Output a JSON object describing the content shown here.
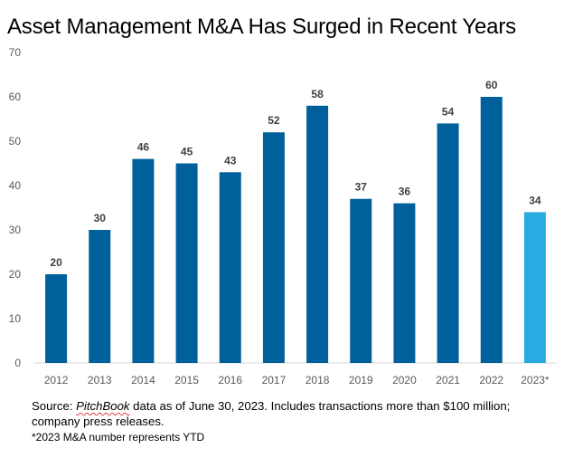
{
  "chart_data": {
    "type": "bar",
    "title": "Asset Management M&A Has Surged in Recent Years",
    "categories": [
      "2012",
      "2013",
      "2014",
      "2015",
      "2016",
      "2017",
      "2018",
      "2019",
      "2020",
      "2021",
      "2022",
      "2023*"
    ],
    "values": [
      20,
      30,
      46,
      45,
      43,
      52,
      58,
      37,
      36,
      54,
      60,
      34
    ],
    "ylim": [
      0,
      70
    ],
    "yticks": [
      0,
      10,
      20,
      30,
      40,
      50,
      60,
      70
    ],
    "xlabel": "",
    "ylabel": "",
    "grid": false,
    "legend": "none",
    "colors": {
      "bar": "#00609c",
      "highlight": "#29abe2",
      "highlight_index": 11,
      "axis": "#d9d9d9"
    }
  },
  "source": {
    "prefix": "Source: ",
    "pitchbook": "PitchBook",
    "rest": " data as of June 30, 2023. Includes transactions more than $100 million; company press releases."
  },
  "footnote": "*2023 M&A number represents YTD"
}
